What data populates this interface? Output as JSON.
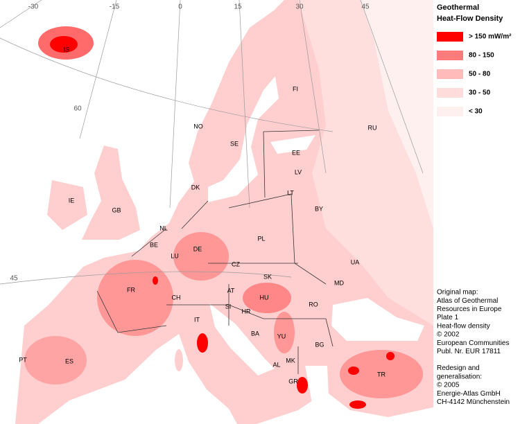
{
  "legend": {
    "title": [
      "Geothermal",
      "Heat-Flow Density"
    ],
    "items": [
      {
        "label": "> 150 mW/m²",
        "color": "#ff0000"
      },
      {
        "label": "80 - 150",
        "color": "#ff7a7a"
      },
      {
        "label": "50 - 80",
        "color": "#ffbaba"
      },
      {
        "label": "30 - 50",
        "color": "#ffdcdc"
      },
      {
        "label": "< 30",
        "color": "#fff0f0"
      }
    ]
  },
  "graticule": [
    "-30",
    "-15",
    "0",
    "15",
    "30",
    "45",
    "60",
    "45"
  ],
  "countries": [
    "IS",
    "NO",
    "SE",
    "FI",
    "RU",
    "EE",
    "LV",
    "LT",
    "BY",
    "DK",
    "IE",
    "GB",
    "NL",
    "BE",
    "LU",
    "DE",
    "PL",
    "CZ",
    "SK",
    "UA",
    "FR",
    "CH",
    "AT",
    "HU",
    "MD",
    "RO",
    "SI",
    "HR",
    "BA",
    "YU",
    "BG",
    "IT",
    "MK",
    "AL",
    "GR",
    "TR",
    "PT",
    "ES"
  ],
  "credits": [
    [
      "Original map:",
      "Atlas of Geothermal",
      "Resources in Europe",
      "Plate 1",
      "Heat-flow density",
      "© 2002",
      "European Communities",
      "Publ. Nr. EUR 17811"
    ],
    [
      "Redesign and",
      "generalisation:",
      "© 2005",
      "Energie-Atlas GmbH",
      "CH-4142 Münchenstein"
    ]
  ]
}
